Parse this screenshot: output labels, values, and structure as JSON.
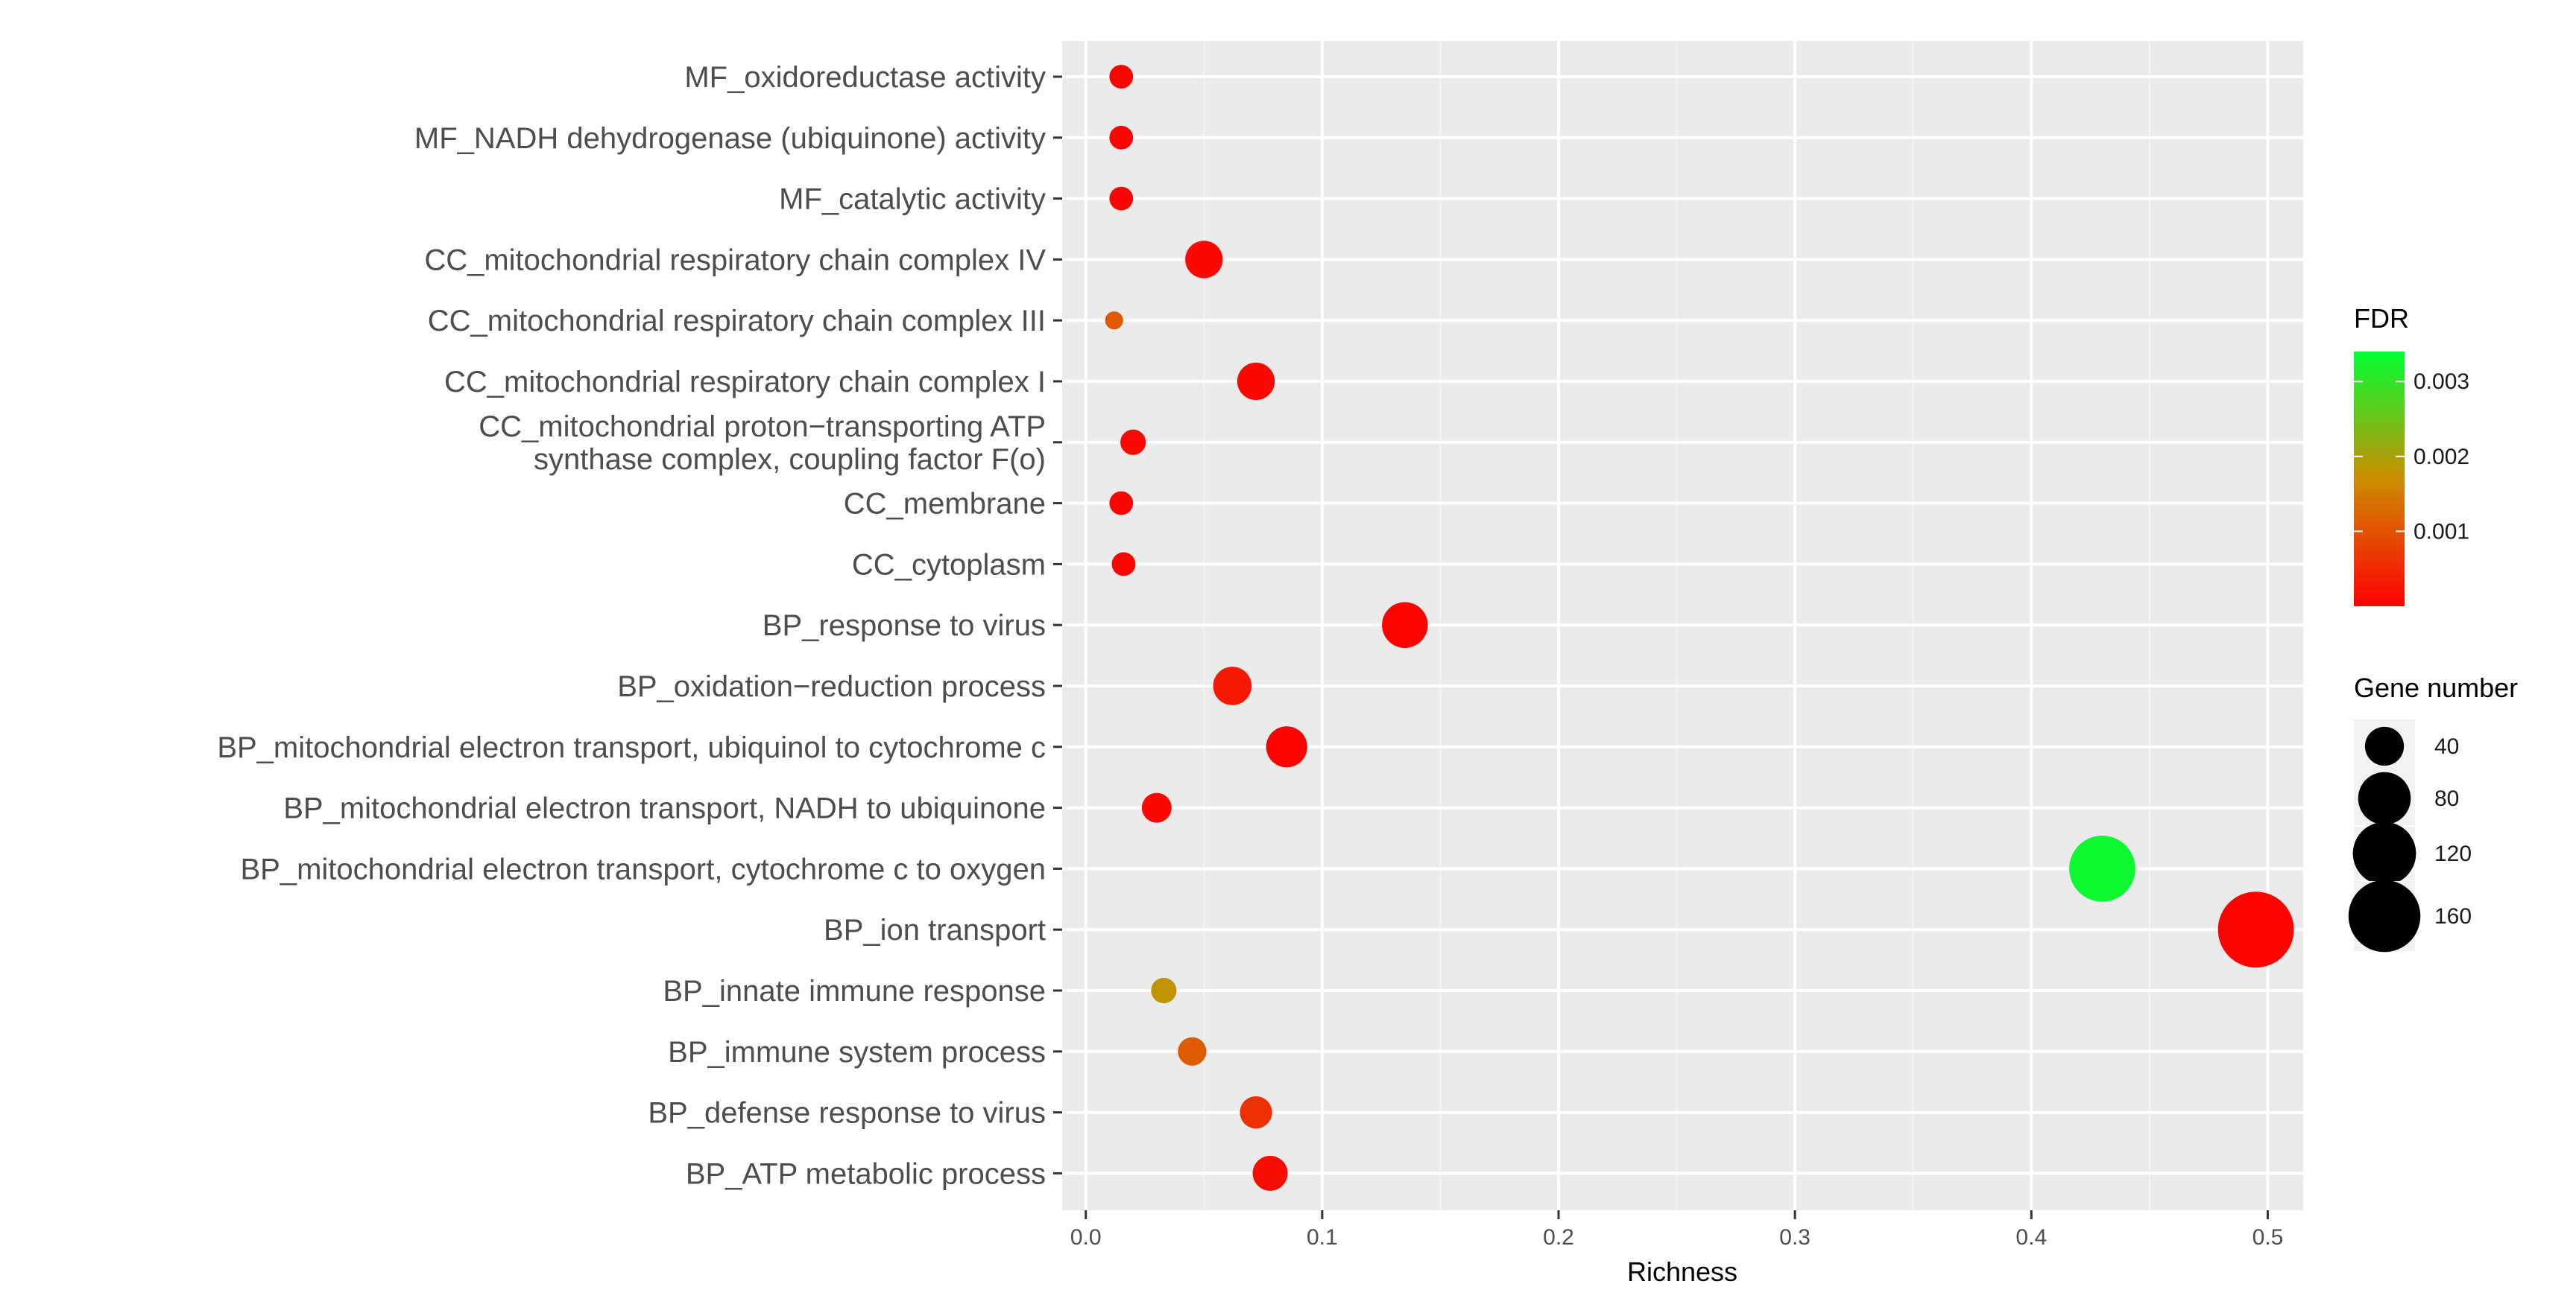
{
  "chart_data": {
    "type": "scatter",
    "title": "",
    "xlabel": "Richness",
    "ylabel": "",
    "xlim": [
      -0.01,
      0.515
    ],
    "xticks": [
      0.0,
      0.1,
      0.2,
      0.3,
      0.4,
      0.5
    ],
    "xtick_labels": [
      "0.0",
      "0.1",
      "0.2",
      "0.3",
      "0.4",
      "0.5"
    ],
    "grid": true,
    "categories": [
      "MF_oxidoreductase activity",
      "MF_NADH dehydrogenase (ubiquinone) activity",
      "MF_catalytic activity",
      "CC_mitochondrial respiratory chain complex IV",
      "CC_mitochondrial respiratory chain complex III",
      "CC_mitochondrial respiratory chain complex I",
      [
        "CC_mitochondrial proton−transporting ATP",
        "synthase complex, coupling factor F(o)"
      ],
      "CC_membrane",
      "CC_cytoplasm",
      "BP_response to virus",
      "BP_oxidation−reduction process",
      "BP_mitochondrial electron transport, ubiquinol to cytochrome c",
      "BP_mitochondrial electron transport, NADH to ubiquinone",
      "BP_mitochondrial electron transport, cytochrome c to oxygen",
      "BP_ion transport",
      "BP_innate immune response",
      "BP_immune system process",
      "BP_defense response to virus",
      "BP_ATP metabolic process"
    ],
    "points": [
      {
        "richness": 0.015,
        "gene_number": 8,
        "fdr": 2e-05
      },
      {
        "richness": 0.015,
        "gene_number": 8,
        "fdr": 2e-05
      },
      {
        "richness": 0.015,
        "gene_number": 8,
        "fdr": 2e-05
      },
      {
        "richness": 0.05,
        "gene_number": 30,
        "fdr": 8e-05
      },
      {
        "richness": 0.012,
        "gene_number": 3,
        "fdr": 0.0011
      },
      {
        "richness": 0.072,
        "gene_number": 30,
        "fdr": 8e-05
      },
      {
        "richness": 0.02,
        "gene_number": 10,
        "fdr": 0.0001
      },
      {
        "richness": 0.015,
        "gene_number": 8,
        "fdr": 5e-05
      },
      {
        "richness": 0.016,
        "gene_number": 8,
        "fdr": 5e-05
      },
      {
        "richness": 0.135,
        "gene_number": 50,
        "fdr": 2e-05
      },
      {
        "richness": 0.062,
        "gene_number": 32,
        "fdr": 0.0003
      },
      {
        "richness": 0.085,
        "gene_number": 38,
        "fdr": 3e-05
      },
      {
        "richness": 0.03,
        "gene_number": 16,
        "fdr": 8e-05
      },
      {
        "richness": 0.43,
        "gene_number": 120,
        "fdr": 0.0033
      },
      {
        "richness": 0.495,
        "gene_number": 165,
        "fdr": 2e-05
      },
      {
        "richness": 0.033,
        "gene_number": 10,
        "fdr": 0.0018
      },
      {
        "richness": 0.045,
        "gene_number": 14,
        "fdr": 0.0011
      },
      {
        "richness": 0.072,
        "gene_number": 20,
        "fdr": 0.0006
      },
      {
        "richness": 0.078,
        "gene_number": 25,
        "fdr": 0.00015
      }
    ],
    "color_legend": {
      "title": "FDR",
      "ticks": [
        0.001,
        0.002,
        0.003
      ],
      "tick_labels": [
        "0.001",
        "0.002",
        "0.003"
      ],
      "range": [
        0.0,
        0.0034
      ],
      "low_color": "#ff0000",
      "mid_color": "#cc8c00",
      "high_color": "#00ff33"
    },
    "size_legend": {
      "title": "Gene number",
      "values": [
        40,
        80,
        120,
        160
      ],
      "labels": [
        "40",
        "80",
        "120",
        "160"
      ]
    },
    "colors": {
      "panel_background": "#ebebeb",
      "grid_major": "#ffffff",
      "grid_minor": "#f5f5f5"
    }
  }
}
